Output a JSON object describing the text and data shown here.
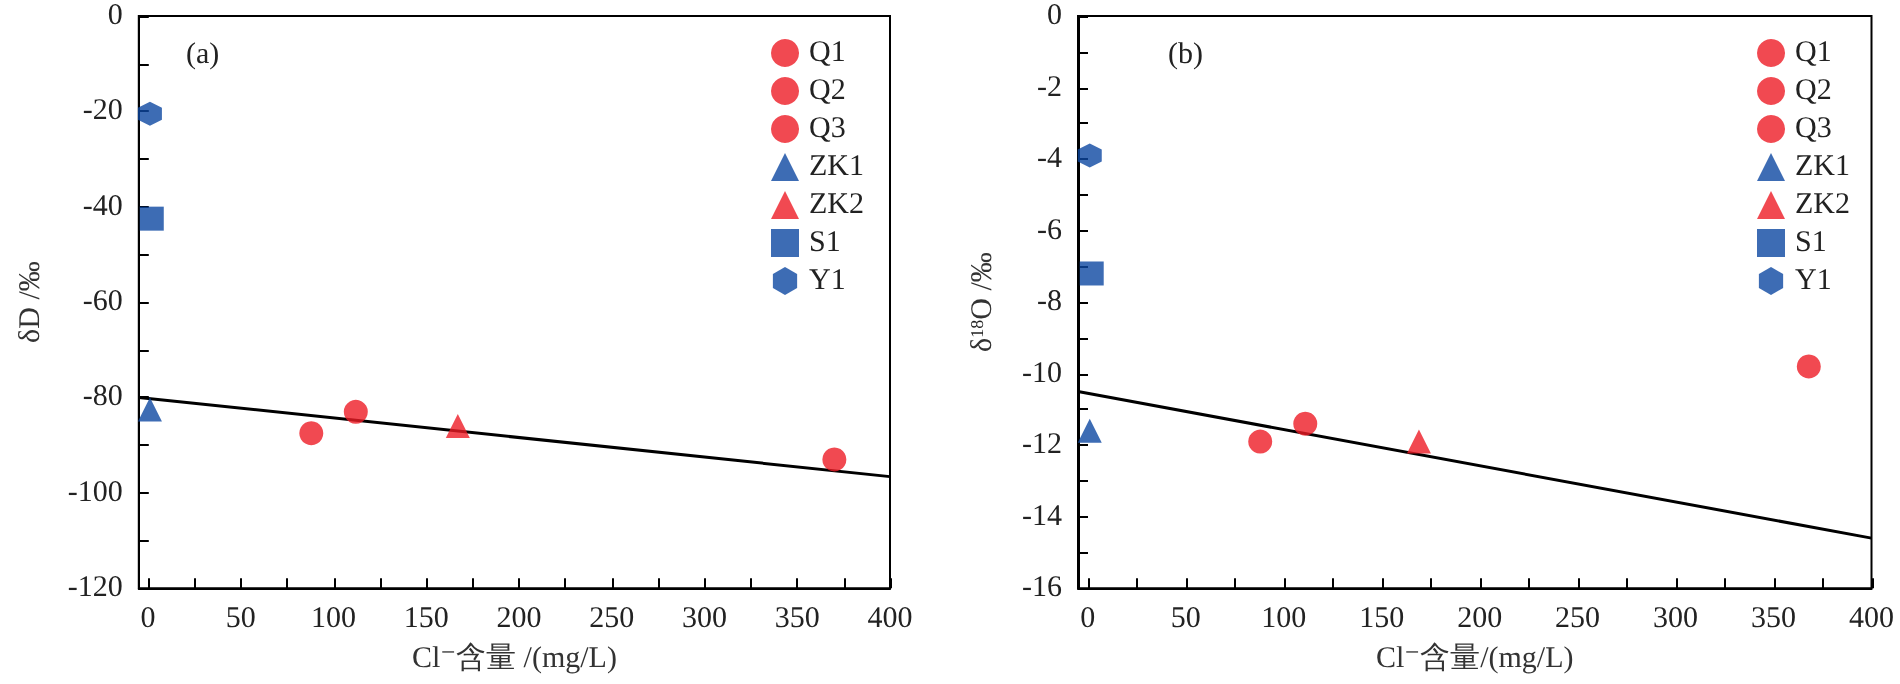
{
  "chart_data": [
    {
      "type": "scatter",
      "annotations": [
        "(a)"
      ],
      "xlabel": "Cl⁻含量 /(mg/L)",
      "ylabel": "δD /‰",
      "xlim": [
        -5,
        400
      ],
      "ylim": [
        -120,
        0
      ],
      "xticks": [
        0,
        {
          "value": 25,
          "label": null
        },
        50,
        {
          "value": 75,
          "label": null
        },
        100,
        {
          "value": 125,
          "label": null
        },
        150,
        {
          "value": 175,
          "label": null
        },
        200,
        {
          "value": 225,
          "label": null
        },
        250,
        {
          "value": 275,
          "label": null
        },
        300,
        {
          "value": 325,
          "label": null
        },
        350,
        {
          "value": 375,
          "label": null
        },
        400
      ],
      "yticks": [
        -120,
        {
          "value": -110,
          "label": null
        },
        -100,
        {
          "value": -90,
          "label": null
        },
        -80,
        {
          "value": -70,
          "label": null
        },
        -60,
        {
          "value": -50,
          "label": null
        },
        -40,
        {
          "value": -30,
          "label": null
        },
        -20,
        {
          "value": -10,
          "label": null
        },
        0
      ],
      "legend": "top right",
      "grid": false,
      "series": [
        {
          "name": "Q1",
          "color": "#ee1c25",
          "marker": "circle",
          "x": [
            370
          ],
          "values": [
            -93
          ]
        },
        {
          "name": "Q2",
          "color": "#ee1c25",
          "marker": "circle",
          "x": [
            112
          ],
          "values": [
            -83
          ]
        },
        {
          "name": "Q3",
          "color": "#ee1c25",
          "marker": "circle",
          "x": [
            88
          ],
          "values": [
            -87.5
          ]
        },
        {
          "name": "ZK1",
          "color": "#0d47a1",
          "marker": "triangle",
          "x": [
            1
          ],
          "values": [
            -82.5
          ]
        },
        {
          "name": "ZK2",
          "color": "#ee1c25",
          "marker": "triangle",
          "x": [
            167
          ],
          "values": [
            -86
          ]
        },
        {
          "name": "S1",
          "color": "#0d47a1",
          "marker": "square",
          "x": [
            2
          ],
          "values": [
            -42.5
          ]
        },
        {
          "name": "Y1",
          "color": "#0d47a1",
          "x": [
            1
          ],
          "values": [
            -20.5
          ]
        },
        {
          "type": "line",
          "color": "#000000",
          "marker": "none",
          "line_style": "solid",
          "x": [
            -5,
            400
          ],
          "values": [
            -80,
            -96.6
          ]
        }
      ]
    },
    {
      "type": "scatter",
      "annotations": [
        "(b)"
      ],
      "xlabel": "Cl⁻含量/(mg/L)",
      "ylabel": "δ$^{18}$O /‰",
      "xlim": [
        -5,
        400
      ],
      "ylim": [
        -16,
        0
      ],
      "xticks": [
        0,
        {
          "value": 25,
          "label": null
        },
        50,
        {
          "value": 75,
          "label": null
        },
        100,
        {
          "value": 125,
          "label": null
        },
        150,
        {
          "value": 175,
          "label": null
        },
        200,
        {
          "value": 225,
          "label": null
        },
        250,
        {
          "value": 275,
          "label": null
        },
        300,
        {
          "value": 325,
          "label": null
        },
        350,
        {
          "value": 375,
          "label": null
        },
        400
      ],
      "yticks": [
        -16,
        {
          "value": -15,
          "label": null
        },
        -14,
        {
          "value": -13,
          "label": null
        },
        -12,
        {
          "value": -11,
          "label": null
        },
        -10,
        {
          "value": -9,
          "label": null
        },
        -8,
        {
          "value": -7,
          "label": null
        },
        -6,
        {
          "value": -5,
          "label": null
        },
        -4,
        {
          "value": -3,
          "label": null
        },
        -2,
        {
          "value": -1,
          "label": null
        },
        0
      ],
      "legend": "top right",
      "grid": false,
      "series": [
        {
          "name": "Q1",
          "color": "#ee1c25",
          "marker": "circle",
          "x": [
            368
          ],
          "values": [
            -9.8
          ]
        },
        {
          "name": "Q2",
          "color": "#ee1c25",
          "marker": "circle",
          "x": [
            111
          ],
          "values": [
            -11.4
          ]
        },
        {
          "name": "Q3",
          "color": "#ee1c25",
          "marker": "circle",
          "x": [
            88
          ],
          "values": [
            -11.9
          ]
        },
        {
          "name": "ZK1",
          "color": "#0d47a1",
          "marker": "triangle",
          "x": [
            1
          ],
          "values": [
            -11.6
          ]
        },
        {
          "name": "ZK2",
          "color": "#ee1c25",
          "marker": "triangle",
          "x": [
            169
          ],
          "values": [
            -11.9
          ]
        },
        {
          "name": "S1",
          "color": "#0d47a1",
          "marker": "square",
          "x": [
            2
          ],
          "values": [
            -7.2
          ]
        },
        {
          "name": "Y1",
          "color": "#0d47a1",
          "x": [
            1
          ],
          "values": [
            -3.9
          ]
        },
        {
          "type": "line",
          "color": "#000000",
          "marker": "none",
          "line_style": "solid",
          "x": [
            -5,
            400
          ],
          "values": [
            -10.5,
            -14.6
          ]
        }
      ]
    }
  ]
}
